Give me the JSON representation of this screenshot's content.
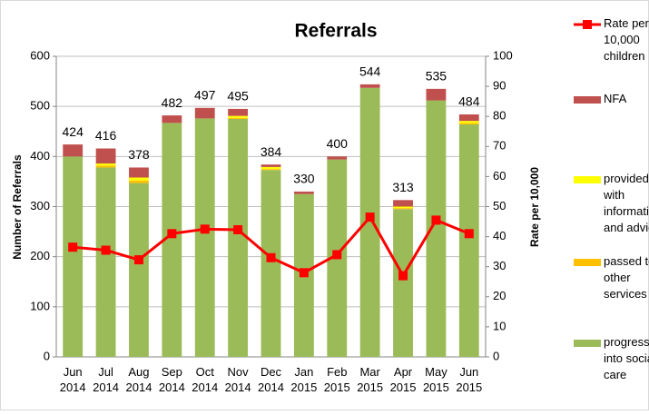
{
  "chart_data": {
    "type": "bar",
    "stacked": true,
    "title": "Referrals",
    "ylabel": "Number of Referrals",
    "y2label": "Rate per 10,000",
    "categories": [
      "Jun 2014",
      "Jul 2014",
      "Aug 2014",
      "Sep 2014",
      "Oct 2014",
      "Nov 2014",
      "Dec 2014",
      "Jan 2015",
      "Feb 2015",
      "Mar 2015",
      "Apr 2015",
      "May 2015",
      "Jun 2015"
    ],
    "series": [
      {
        "name": "progressed into social care",
        "color": "#9bbb59",
        "values": [
          400,
          378,
          347,
          467,
          476,
          475,
          373,
          325,
          394,
          537,
          295,
          512,
          464
        ]
      },
      {
        "name": "passed to other services",
        "color": "#ffc000",
        "values": [
          0,
          4,
          5,
          0,
          0,
          2,
          2,
          0,
          0,
          0,
          2,
          0,
          3
        ]
      },
      {
        "name": "provided with information and advice",
        "color": "#ffff00",
        "values": [
          0,
          4,
          6,
          0,
          0,
          4,
          4,
          0,
          0,
          0,
          3,
          0,
          4
        ]
      },
      {
        "name": "NFA",
        "color": "#c0504d",
        "values": [
          24,
          30,
          20,
          15,
          21,
          14,
          5,
          5,
          6,
          7,
          13,
          23,
          13
        ]
      },
      {
        "name": "Rate per 10,000 children",
        "color": "#ff0000",
        "type": "line",
        "axis": "y2",
        "values": [
          36.5,
          35.5,
          32.3,
          41,
          42.5,
          42.3,
          33,
          28,
          34,
          46.5,
          27,
          45.5,
          41
        ]
      }
    ],
    "totals": [
      424,
      416,
      378,
      482,
      497,
      495,
      384,
      330,
      400,
      544,
      313,
      535,
      484
    ],
    "ylim": [
      0,
      600
    ],
    "yticks": [
      0,
      100,
      200,
      300,
      400,
      500,
      600
    ],
    "y2lim": [
      0,
      100
    ],
    "y2ticks": [
      0,
      10,
      20,
      30,
      40,
      50,
      60,
      70,
      80,
      90,
      100
    ],
    "grid": true,
    "legend": "right"
  }
}
